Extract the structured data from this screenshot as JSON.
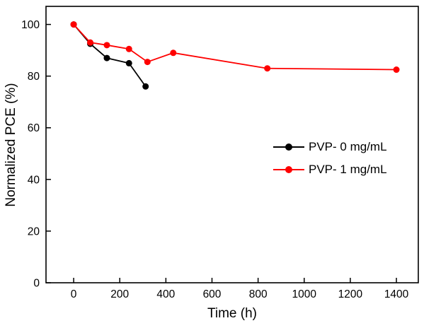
{
  "chart_data": {
    "type": "line",
    "title": "",
    "xlabel": "Time (h)",
    "ylabel": "Normalized PCE (%)",
    "xlim": [
      -120,
      1495
    ],
    "ylim": [
      0,
      107
    ],
    "xticks": [
      0,
      200,
      400,
      600,
      800,
      1000,
      1200,
      1400
    ],
    "yticks": [
      0,
      20,
      40,
      60,
      80,
      100
    ],
    "grid": false,
    "legend_position": "center-right",
    "series": [
      {
        "name": "PVP- 0 mg/mL",
        "color": "#000000",
        "marker": "circle",
        "x": [
          0,
          72,
          144,
          240,
          312
        ],
        "y": [
          100,
          92.5,
          87,
          85,
          76
        ]
      },
      {
        "name": "PVP- 1 mg/mL",
        "color": "#fe0000",
        "marker": "circle",
        "x": [
          0,
          72,
          144,
          240,
          320,
          432,
          840,
          1400
        ],
        "y": [
          100,
          93,
          92,
          90.5,
          85.5,
          89,
          83,
          82.5
        ]
      }
    ]
  }
}
